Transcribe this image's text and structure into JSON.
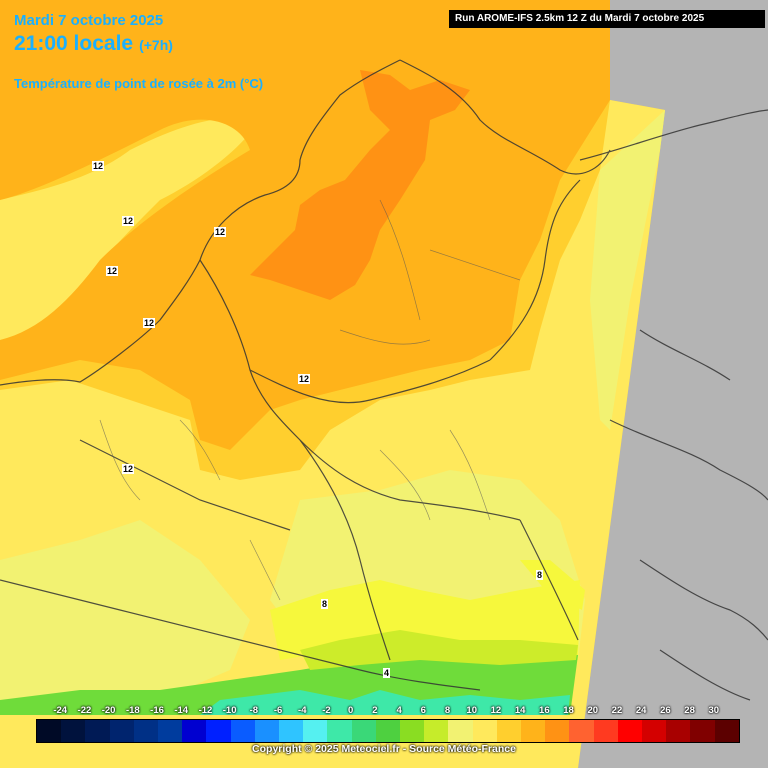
{
  "header": {
    "date": "Mardi 7 octobre 2025",
    "time": "21:00 locale",
    "lead": "(+7h)",
    "variable": "Température de point de rosée à 2m (°C)",
    "run": "Run AROME-IFS 2.5km 12 Z du Mardi 7 octobre 2025"
  },
  "contour_labels": [
    "12",
    "12",
    "12",
    "12",
    "12",
    "12",
    "12",
    "8",
    "8",
    "4"
  ],
  "legend": {
    "ticks": [
      "-24",
      "-22",
      "-20",
      "-18",
      "-16",
      "-14",
      "-12",
      "-10",
      "-8",
      "-6",
      "-4",
      "-2",
      "0",
      "2",
      "4",
      "6",
      "8",
      "10",
      "12",
      "14",
      "16",
      "18",
      "20",
      "22",
      "24",
      "26",
      "28",
      "30"
    ],
    "colors": [
      "#000a26",
      "#00123d",
      "#001a55",
      "#00246e",
      "#003086",
      "#003c9e",
      "#0000d0",
      "#0020ff",
      "#0a5cff",
      "#1a90ff",
      "#2fc4ff",
      "#55f0f0",
      "#3ee8a8",
      "#3ad878",
      "#4ed040",
      "#8add22",
      "#c6ec2a",
      "#f2f272",
      "#ffe95c",
      "#ffcf2e",
      "#ffb31a",
      "#ff9214",
      "#ff6230",
      "#ff3a20",
      "#ff0000",
      "#d40000",
      "#a80000",
      "#800000",
      "#5c0000"
    ],
    "copyright": "Copyright © 2025 Meteociel.fr - Source Météo-France"
  },
  "map": {
    "colors": {
      "outside_domain": "#b4b4b4",
      "dewpoint_12_14": "#ffcf2e",
      "dewpoint_14_16": "#ffb31a",
      "dewpoint_16_18": "#ff9214",
      "dewpoint_10_12": "#ffe95c",
      "dewpoint_8_10": "#f2f272",
      "dewpoint_6_8": "#f6f83c",
      "dewpoint_4_6": "#cdec2a",
      "dewpoint_2_4": "#6fdc3a",
      "dewpoint_0_2": "#3ee8a8"
    }
  }
}
